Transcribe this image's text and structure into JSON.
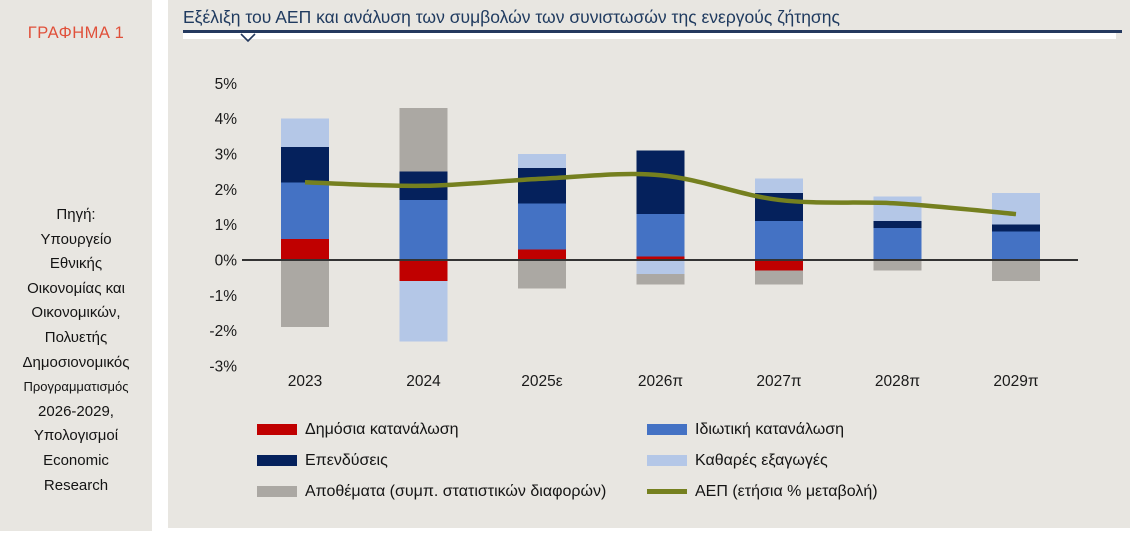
{
  "sidebar": {
    "figure_label": "ΓΡΑΦΗΜΑ 1",
    "figure_label_color": "#e0503a",
    "source_lines": [
      "Πηγή:",
      "Υπουργείο",
      "Εθνικής",
      "Οικονομίας και",
      "Οικονομικών,",
      "Πολυετής",
      "Δημοσιονομικός",
      "Προγραμματισμός",
      "2026-2029,",
      "Υπολογισμοί",
      "Economic",
      "Research"
    ]
  },
  "header": {
    "title": "Εξέλιξη του ΑΕΠ και ανάλυση των συμβολών των συνιστωσών της ενεργούς ζήτησης",
    "title_color": "#1f3a5f",
    "underline_color": "#24395e"
  },
  "chart_data": {
    "type": "bar",
    "subtype": "stacked-bar-with-line",
    "title": "Εξέλιξη του ΑΕΠ και ανάλυση των συμβολών των συνιστωσών της ενεργούς ζήτησης",
    "categories": [
      "2023",
      "2024",
      "2025ε",
      "2026π",
      "2027π",
      "2028π",
      "2029π"
    ],
    "unit": "percentage points contribution",
    "series": [
      {
        "name": "Δημόσια κατανάλωση",
        "type": "bar",
        "color": "#c00000",
        "values": [
          0.6,
          -0.6,
          0.3,
          0.1,
          -0.3,
          0.0,
          0.0
        ]
      },
      {
        "name": "Ιδιωτική κατανάλωση",
        "type": "bar",
        "color": "#4472c4",
        "values": [
          1.6,
          1.7,
          1.3,
          1.2,
          1.1,
          0.9,
          0.8
        ]
      },
      {
        "name": "Επενδύσεις",
        "type": "bar",
        "color": "#05215c",
        "values": [
          1.0,
          0.8,
          1.0,
          1.8,
          0.8,
          0.2,
          0.2
        ]
      },
      {
        "name": "Καθαρές εξαγωγές",
        "type": "bar",
        "color": "#b4c7e7",
        "values": [
          0.8,
          -1.7,
          0.4,
          -0.4,
          0.4,
          0.7,
          0.9
        ]
      },
      {
        "name": "Αποθέματα (συμπ. στατιστικών διαφορών)",
        "type": "bar",
        "color": "#aba8a3",
        "values": [
          -1.9,
          1.8,
          -0.8,
          -0.3,
          -0.4,
          -0.3,
          -0.6
        ]
      },
      {
        "name": "ΑΕΠ (ετήσια % μεταβολή)",
        "type": "line",
        "color": "#75801f",
        "values": [
          2.2,
          2.1,
          2.3,
          2.4,
          1.7,
          1.6,
          1.3
        ]
      }
    ],
    "y_tick_labels": [
      "5%",
      "4%",
      "3%",
      "2%",
      "1%",
      "0%",
      "-1%",
      "-2%",
      "-3%"
    ],
    "y_tick_values": [
      5,
      4,
      3,
      2,
      1,
      0,
      -1,
      -2,
      -3
    ],
    "ylim": [
      -3.6,
      5.6
    ],
    "grid": false,
    "zero_line_color": "#333333",
    "legend_position": "bottom, two columns"
  }
}
